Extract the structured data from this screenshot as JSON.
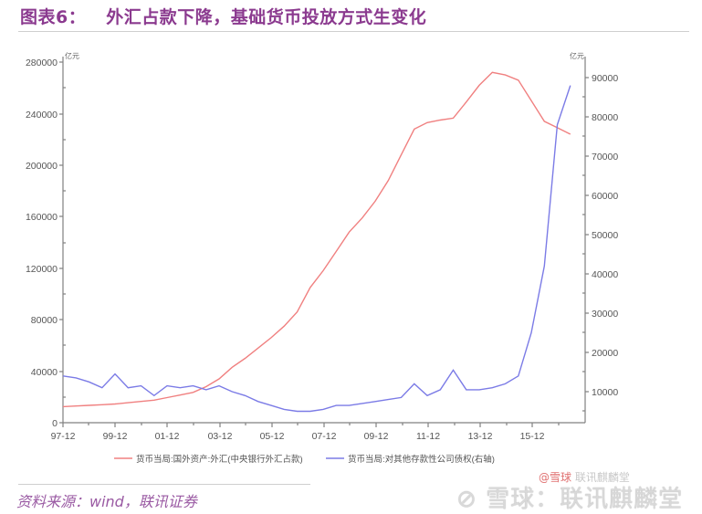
{
  "header": {
    "figure_label": "图表6：",
    "title": "外汇占款下降，基础货币投放方式生变化"
  },
  "footer": {
    "source": "资料来源：wind，联讯证券",
    "watermark": "雪球：联讯麒麟堂",
    "watermark_small_prefix": "@雪球",
    "watermark_small": "联讯麒麟堂"
  },
  "chart_data": {
    "type": "line",
    "title": "外汇占款下降，基础货币投放方式生变化",
    "xlabel": "",
    "ylabel": "亿元",
    "y2label": "亿元",
    "x_tick_labels": [
      "97-12",
      "99-12",
      "01-12",
      "03-12",
      "05-12",
      "07-12",
      "09-12",
      "11-12",
      "13-12",
      "15-12"
    ],
    "ylim": [
      0,
      280000
    ],
    "y_ticks": [
      0,
      40000,
      80000,
      120000,
      160000,
      200000,
      240000,
      280000
    ],
    "y2lim": [
      2000,
      94000
    ],
    "y2_ticks": [
      10000,
      20000,
      30000,
      40000,
      50000,
      60000,
      70000,
      80000,
      90000
    ],
    "grid": false,
    "legend_position": "bottom",
    "x": [
      "97-12",
      "98-06",
      "98-12",
      "99-06",
      "99-12",
      "00-06",
      "00-12",
      "01-06",
      "01-12",
      "02-06",
      "02-12",
      "03-06",
      "03-12",
      "04-06",
      "04-12",
      "05-06",
      "05-12",
      "06-06",
      "06-12",
      "07-06",
      "07-12",
      "08-06",
      "08-12",
      "09-06",
      "09-12",
      "10-06",
      "10-12",
      "11-06",
      "11-12",
      "12-06",
      "12-12",
      "13-06",
      "13-12",
      "14-06",
      "14-12",
      "15-06",
      "15-12",
      "16-06",
      "16-12",
      "17-03"
    ],
    "series": [
      {
        "name": "货币当局:国外资产:外汇(中央银行外汇占款)",
        "axis": "left",
        "color": "#f08080",
        "values": [
          12500,
          13000,
          13500,
          14000,
          14500,
          15500,
          16500,
          17500,
          19500,
          21500,
          23500,
          28000,
          34000,
          43000,
          50000,
          58000,
          66000,
          75000,
          86000,
          105000,
          118000,
          133000,
          148000,
          159000,
          172000,
          188000,
          208000,
          228000,
          233000,
          235000,
          236500,
          249000,
          262000,
          272000,
          270000,
          266000,
          250000,
          234000,
          229000,
          224000
        ]
      },
      {
        "name": "货币当局:对其他存款性公司债权(右轴)",
        "axis": "right",
        "color": "#7b7be6",
        "values": [
          14000,
          13500,
          12500,
          11000,
          14500,
          11000,
          11500,
          9000,
          11500,
          11000,
          11500,
          10500,
          11500,
          10000,
          9000,
          7500,
          6500,
          5500,
          5000,
          5000,
          5500,
          6500,
          6500,
          7000,
          7500,
          8000,
          8500,
          12000,
          9000,
          10500,
          15500,
          10500,
          10500,
          11000,
          12000,
          14000,
          25000,
          42000,
          78000,
          88000
        ]
      }
    ]
  },
  "legend": {
    "series_0": "货币当局:国外资产:外汇(中央银行外汇占款)",
    "series_1": "货币当局:对其他存款性公司债权(右轴)"
  },
  "axes": {
    "left_unit": "亿元",
    "right_unit": "亿元",
    "left_ticks": [
      "280000",
      "240000",
      "200000",
      "160000",
      "120000",
      "80000",
      "40000",
      "0"
    ],
    "right_ticks": [
      "90000",
      "80000",
      "70000",
      "60000",
      "50000",
      "40000",
      "30000",
      "20000",
      "10000"
    ],
    "x_ticks": [
      "97-12",
      "99-12",
      "01-12",
      "03-12",
      "05-12",
      "07-12",
      "09-12",
      "11-12",
      "13-12",
      "15-12"
    ]
  }
}
